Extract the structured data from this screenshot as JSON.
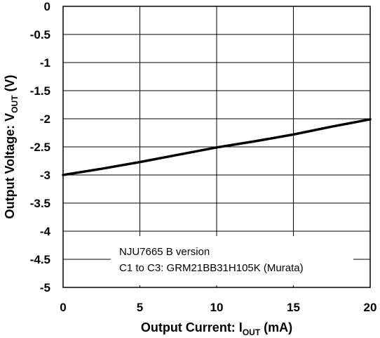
{
  "chart_data": {
    "type": "line",
    "title": "",
    "xlabel": "Output Current: I",
    "xlabel_sub": "OUT",
    "xlabel_unit": " (mA)",
    "ylabel": "Output Voltage: V",
    "ylabel_sub": "OUT",
    "ylabel_unit": " (V)",
    "xlim": [
      0,
      20
    ],
    "ylim": [
      -5,
      0
    ],
    "xticks": [
      "0",
      "5",
      "10",
      "15",
      "20"
    ],
    "yticks": [
      "0",
      "-0.5",
      "-1",
      "-1.5",
      "-2",
      "-2.5",
      "-3",
      "-3.5",
      "-4",
      "-4.5",
      "-5"
    ],
    "grid": true,
    "series": [
      {
        "x": [
          0,
          2.5,
          5,
          7.5,
          10,
          12.5,
          15,
          17.5,
          20
        ],
        "y": [
          -3.0,
          -2.89,
          -2.77,
          -2.64,
          -2.51,
          -2.4,
          -2.28,
          -2.14,
          -2.01
        ]
      }
    ],
    "annotations": [
      "NJU7665 B version",
      "C1 to C3: GRM21BB31H105K (Murata)"
    ]
  },
  "colors": {
    "line": "#000000",
    "grid": "#000000"
  }
}
